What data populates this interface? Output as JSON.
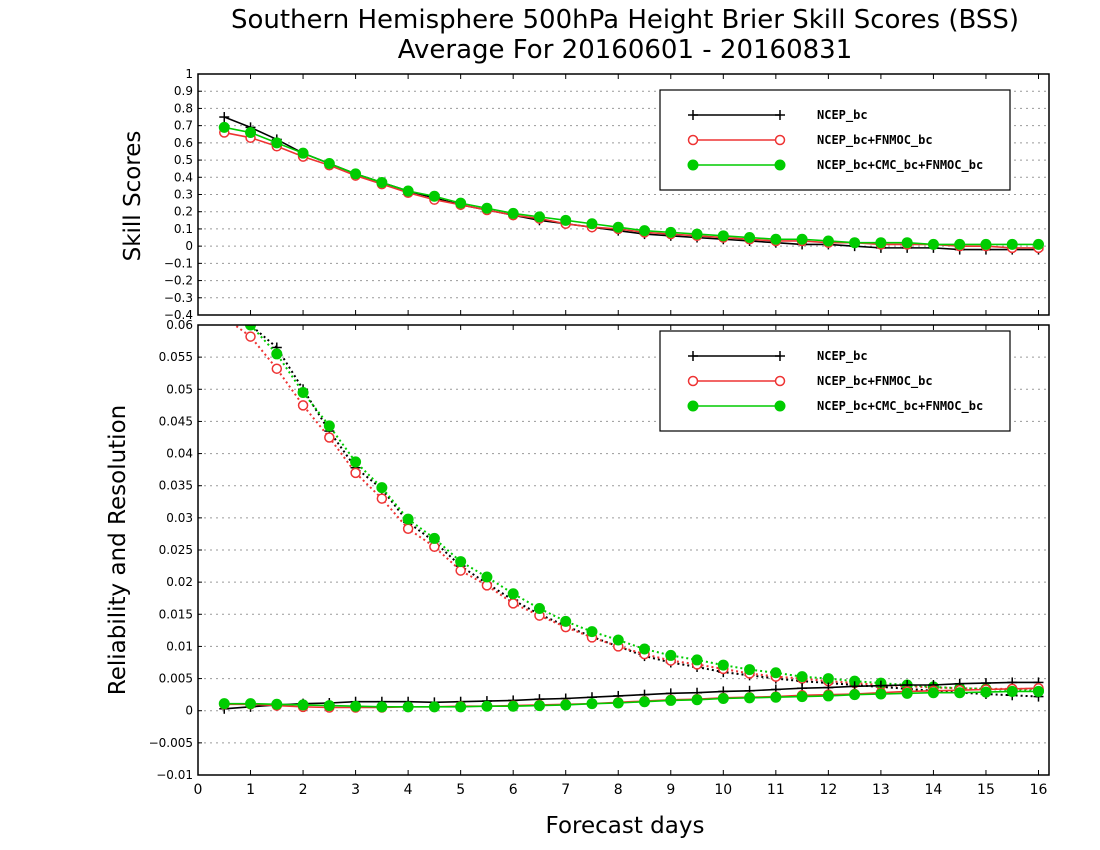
{
  "chart_data": {
    "title": "Southern Hemisphere 500hPa Height Brier Skill Scores (BSS)",
    "subtitle": "Average For 20160601 - 20160831",
    "xlabel": "Forecast days",
    "xlim": [
      0,
      16.2
    ],
    "xticks": [
      "0",
      "1",
      "2",
      "3",
      "4",
      "5",
      "6",
      "7",
      "8",
      "9",
      "10",
      "11",
      "12",
      "13",
      "14",
      "15",
      "16"
    ],
    "grid": true,
    "legend_position": "top-right",
    "colors": {
      "ncep_bc": "#000000",
      "ncep_fnmoc": "#ee3333",
      "ncep_cmc_fnmoc": "#00cc00"
    },
    "panels": [
      {
        "type": "line",
        "ylabel": "Skill Scores",
        "ylim": [
          -0.4,
          1
        ],
        "yticks": [
          "1",
          "0.9",
          "0.8",
          "0.7",
          "0.6",
          "0.5",
          "0.4",
          "0.3",
          "0.2",
          "0.1",
          "0",
          "−0.1",
          "−0.2",
          "−0.3",
          "−0.4"
        ],
        "x": [
          0.5,
          1,
          1.5,
          2,
          2.5,
          3,
          3.5,
          4,
          4.5,
          5,
          5.5,
          6,
          6.5,
          7,
          7.5,
          8,
          8.5,
          9,
          9.5,
          10,
          10.5,
          11,
          11.5,
          12,
          12.5,
          13,
          13.5,
          14,
          14.5,
          15,
          15.5,
          16
        ],
        "series": [
          {
            "name": "NCEP_bc",
            "marker": "plus",
            "values": [
              0.75,
              0.69,
              0.62,
              0.54,
              0.48,
              0.42,
              0.37,
              0.32,
              0.28,
              0.24,
              0.21,
              0.18,
              0.15,
              0.13,
              0.11,
              0.09,
              0.07,
              0.06,
              0.05,
              0.04,
              0.03,
              0.02,
              0.01,
              0.01,
              0.0,
              -0.01,
              -0.01,
              -0.01,
              -0.02,
              -0.02,
              -0.02,
              -0.02
            ]
          },
          {
            "name": "NCEP_bc+FNMOC_bc",
            "marker": "open-circle",
            "values": [
              0.66,
              0.63,
              0.58,
              0.52,
              0.47,
              0.41,
              0.36,
              0.31,
              0.27,
              0.24,
              0.21,
              0.18,
              0.16,
              0.13,
              0.11,
              0.1,
              0.08,
              0.07,
              0.06,
              0.05,
              0.04,
              0.03,
              0.03,
              0.02,
              0.02,
              0.01,
              0.01,
              0.01,
              0.0,
              0.0,
              -0.01,
              -0.01
            ]
          },
          {
            "name": "NCEP_bc+CMC_bc+FNMOC_bc",
            "marker": "filled-circle",
            "values": [
              0.69,
              0.66,
              0.6,
              0.54,
              0.48,
              0.42,
              0.37,
              0.32,
              0.29,
              0.25,
              0.22,
              0.19,
              0.17,
              0.15,
              0.13,
              0.11,
              0.09,
              0.08,
              0.07,
              0.06,
              0.05,
              0.04,
              0.04,
              0.03,
              0.02,
              0.02,
              0.02,
              0.01,
              0.01,
              0.01,
              0.01,
              0.01
            ]
          }
        ]
      },
      {
        "type": "line",
        "ylabel": "Reliability and Resolution",
        "ylim": [
          -0.01,
          0.06
        ],
        "yticks": [
          "0.06",
          "0.055",
          "0.05",
          "0.045",
          "0.04",
          "0.035",
          "0.03",
          "0.025",
          "0.02",
          "0.015",
          "0.01",
          "0.005",
          "0",
          "−0.005",
          "−0.01"
        ],
        "x": [
          0.5,
          1,
          1.5,
          2,
          2.5,
          3,
          3.5,
          4,
          4.5,
          5,
          5.5,
          6,
          6.5,
          7,
          7.5,
          8,
          8.5,
          9,
          9.5,
          10,
          10.5,
          11,
          11.5,
          12,
          12.5,
          13,
          13.5,
          14,
          14.5,
          15,
          15.5,
          16
        ],
        "series": [
          {
            "name": "NCEP_bc",
            "marker": "plus",
            "values": [
              0.0003,
              0.0006,
              0.0009,
              0.0011,
              0.0012,
              0.0014,
              0.0014,
              0.0014,
              0.0013,
              0.0014,
              0.0015,
              0.0016,
              0.0018,
              0.0019,
              0.0021,
              0.0023,
              0.0025,
              0.0027,
              0.0028,
              0.003,
              0.0031,
              0.0033,
              0.0035,
              0.0036,
              0.0038,
              0.0039,
              0.004,
              0.004,
              0.0042,
              0.0043,
              0.0044,
              0.0044
            ]
          },
          {
            "name": "NCEP_bc+FNMOC_bc",
            "marker": "open-circle",
            "values": [
              0.001,
              0.001,
              0.0008,
              0.0006,
              0.0005,
              0.0005,
              0.0005,
              0.0006,
              0.0006,
              0.0007,
              0.0007,
              0.0008,
              0.0009,
              0.001,
              0.0011,
              0.0013,
              0.0015,
              0.0017,
              0.0018,
              0.002,
              0.0021,
              0.0022,
              0.0024,
              0.0025,
              0.0026,
              0.0028,
              0.003,
              0.0031,
              0.0032,
              0.0033,
              0.0034,
              0.0035
            ]
          },
          {
            "name": "NCEP_bc+CMC_bc+FNMOC_bc",
            "marker": "filled-circle",
            "values": [
              0.0011,
              0.0011,
              0.001,
              0.0009,
              0.0008,
              0.0007,
              0.0006,
              0.0006,
              0.0006,
              0.0006,
              0.0007,
              0.0007,
              0.0008,
              0.0009,
              0.0011,
              0.0012,
              0.0014,
              0.0016,
              0.0017,
              0.0019,
              0.002,
              0.0021,
              0.0022,
              0.0023,
              0.0025,
              0.0026,
              0.0027,
              0.0028,
              0.0028,
              0.0029,
              0.003,
              0.003
            ]
          }
        ],
        "dotted_series": [
          {
            "name": "NCEP_bc",
            "marker": "plus",
            "values": [
              0.063,
              0.06,
              0.0565,
              0.05,
              0.0435,
              0.0378,
              0.0345,
              0.0293,
              0.0263,
              0.0225,
              0.0198,
              0.0172,
              0.015,
              0.0132,
              0.0115,
              0.01,
              0.0085,
              0.0075,
              0.0068,
              0.006,
              0.0055,
              0.005,
              0.0046,
              0.0043,
              0.004,
              0.0037,
              0.0034,
              0.0031,
              0.0028,
              0.0026,
              0.0024,
              0.0022
            ]
          },
          {
            "name": "NCEP_bc+FNMOC_bc",
            "marker": "open-circle",
            "values": [
              0.0612,
              0.0582,
              0.0532,
              0.0475,
              0.0425,
              0.037,
              0.033,
              0.0283,
              0.0255,
              0.0218,
              0.0195,
              0.0167,
              0.0148,
              0.013,
              0.0114,
              0.01,
              0.0088,
              0.0078,
              0.0072,
              0.0065,
              0.0058,
              0.0053,
              0.005,
              0.0046,
              0.0043,
              0.004,
              0.0038,
              0.0036,
              0.0035,
              0.0034,
              0.0034,
              0.0034
            ]
          },
          {
            "name": "NCEP_bc+CMC_bc+FNMOC_bc",
            "marker": "filled-circle",
            "values": [
              0.0635,
              0.06,
              0.0555,
              0.0495,
              0.0443,
              0.0387,
              0.0347,
              0.0298,
              0.0268,
              0.0232,
              0.0208,
              0.0182,
              0.0159,
              0.0139,
              0.0123,
              0.011,
              0.0096,
              0.0086,
              0.0079,
              0.0071,
              0.0064,
              0.0059,
              0.0053,
              0.005,
              0.0046,
              0.0043,
              0.004,
              0.0037,
              0.0035,
              0.0034,
              0.0032,
              0.0031
            ]
          }
        ]
      }
    ]
  }
}
